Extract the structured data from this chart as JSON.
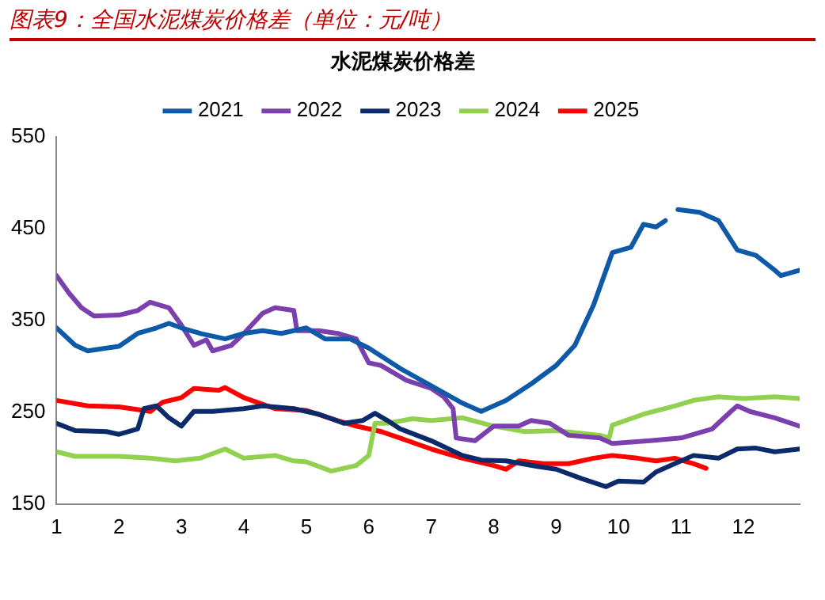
{
  "chart_data": {
    "type": "line",
    "title": "图表9：全国水泥煤炭价格差（单位：元/吨）",
    "subtitle": "水泥煤炭价格差",
    "xlim": [
      1,
      12.9
    ],
    "xticks": [
      1,
      2,
      3,
      4,
      5,
      6,
      7,
      8,
      9,
      10,
      11,
      12
    ],
    "ylim": [
      150,
      550
    ],
    "yticks": [
      150,
      250,
      350,
      450,
      550
    ],
    "grid": false,
    "legend": "top",
    "marker": "none",
    "line_style": "solid",
    "series": [
      {
        "name": "2021",
        "color": "#0f5aa8",
        "x": [
          1,
          1.3,
          1.5,
          1.8,
          2,
          2.3,
          2.6,
          2.8,
          3,
          3.3,
          3.7,
          4,
          4.3,
          4.6,
          5,
          5.3,
          5.7,
          6,
          6.5,
          7,
          7.5,
          7.8,
          8.2,
          8.6,
          9,
          9.3,
          9.6,
          9.9,
          10.2,
          10.4,
          10.6,
          10.75,
          10.85,
          10.95,
          11.3,
          11.6,
          11.9,
          12.2,
          12.5,
          12.6,
          12.9
        ],
        "values": [
          342,
          323,
          317,
          320,
          322,
          336,
          342,
          347,
          342,
          336,
          330,
          336,
          339,
          336,
          342,
          330,
          330,
          320,
          298,
          279,
          260,
          251,
          263,
          281,
          301,
          323,
          367,
          424,
          430,
          455,
          452,
          459,
          null,
          471,
          468,
          459,
          427,
          421,
          405,
          399,
          405
        ]
      },
      {
        "name": "2022",
        "color": "#7c3fae",
        "x": [
          1,
          1.2,
          1.4,
          1.6,
          2,
          2.3,
          2.5,
          2.8,
          3,
          3.2,
          3.4,
          3.5,
          3.8,
          4,
          4.3,
          4.5,
          4.8,
          4.85,
          5.2,
          5.5,
          5.8,
          6,
          6.2,
          6.6,
          7,
          7.2,
          7.35,
          7.4,
          7.7,
          8,
          8.4,
          8.6,
          8.9,
          9.2,
          9.7,
          9.9,
          10.5,
          11,
          11.5,
          11.8,
          11.9,
          12.1,
          12.5,
          12.9
        ],
        "values": [
          399,
          380,
          364,
          355,
          356,
          361,
          370,
          364,
          345,
          323,
          329,
          317,
          323,
          336,
          358,
          364,
          361,
          339,
          339,
          336,
          330,
          304,
          301,
          285,
          276,
          267,
          254,
          222,
          219,
          235,
          235,
          241,
          238,
          225,
          222,
          216,
          219,
          222,
          232,
          251,
          257,
          251,
          244,
          235
        ]
      },
      {
        "name": "2023",
        "color": "#0a2a6b",
        "x": [
          1,
          1.3,
          1.8,
          2,
          2.3,
          2.4,
          2.6,
          2.8,
          3,
          3.2,
          3.5,
          4,
          4.3,
          4.8,
          5.2,
          5.6,
          5.9,
          6.1,
          6.3,
          6.5,
          7,
          7.5,
          7.8,
          8.2,
          8.7,
          9,
          9.4,
          9.8,
          10,
          10.4,
          10.6,
          10.9,
          11.2,
          11.6,
          11.9,
          12.2,
          12.5,
          12.9
        ],
        "values": [
          238,
          230,
          229,
          226,
          232,
          254,
          257,
          244,
          235,
          251,
          251,
          254,
          257,
          254,
          248,
          238,
          241,
          249,
          241,
          232,
          219,
          203,
          198,
          197,
          191,
          188,
          178,
          169,
          175,
          174,
          185,
          194,
          203,
          200,
          210,
          211,
          207,
          210
        ]
      },
      {
        "name": "2024",
        "color": "#92d050",
        "x": [
          1,
          1.3,
          2,
          2.5,
          2.9,
          3.3,
          3.7,
          4,
          4.5,
          4.8,
          5,
          5.4,
          5.8,
          6,
          6.1,
          6.3,
          6.7,
          7,
          7.5,
          8,
          8.5,
          9,
          9.7,
          9.85,
          9.9,
          10.4,
          10.9,
          11.2,
          11.6,
          12,
          12.5,
          12.9
        ],
        "values": [
          207,
          202,
          202,
          200,
          197,
          200,
          210,
          200,
          203,
          197,
          196,
          186,
          192,
          203,
          238,
          238,
          243,
          241,
          244,
          235,
          229,
          230,
          225,
          222,
          236,
          248,
          257,
          263,
          267,
          265,
          267,
          265
        ]
      },
      {
        "name": "2025",
        "color": "#ff0000",
        "x": [
          1,
          1.5,
          2,
          2.5,
          2.7,
          3,
          3.2,
          3.6,
          3.7,
          4,
          4.5,
          5,
          5.5,
          5.8,
          6,
          6.2,
          6.5,
          7,
          7.5,
          8,
          8.2,
          8.4,
          8.8,
          9.2,
          9.6,
          9.9,
          10.3,
          10.6,
          10.9,
          11.2,
          11.4
        ],
        "values": [
          263,
          257,
          256,
          251,
          261,
          266,
          276,
          274,
          277,
          266,
          254,
          252,
          241,
          235,
          232,
          229,
          222,
          210,
          200,
          192,
          188,
          197,
          194,
          194,
          200,
          203,
          200,
          197,
          200,
          194,
          189
        ]
      }
    ]
  }
}
